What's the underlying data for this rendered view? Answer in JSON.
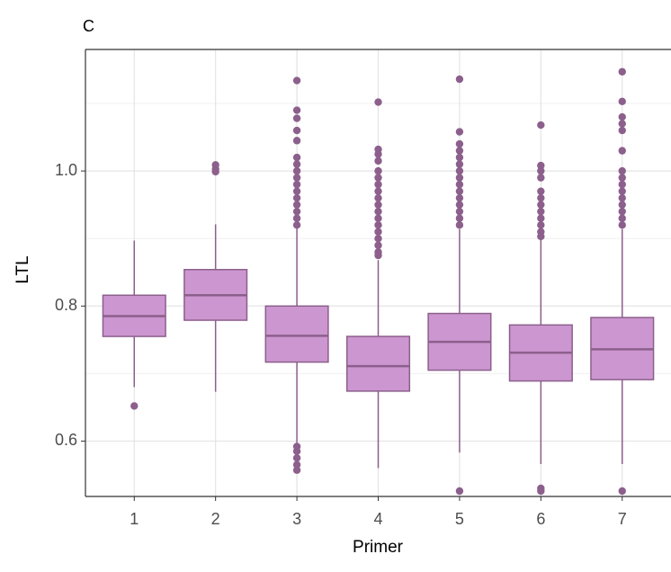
{
  "chart_data": {
    "type": "box",
    "title": "C",
    "x_label": "Primer",
    "y_label": "LTL",
    "categories": [
      "1",
      "2",
      "3",
      "4",
      "5",
      "6",
      "7"
    ],
    "whisker_low": [
      0.68,
      0.673,
      0.596,
      0.56,
      0.583,
      0.566,
      0.566
    ],
    "q1": [
      0.755,
      0.779,
      0.717,
      0.674,
      0.705,
      0.689,
      0.691
    ],
    "median": [
      0.785,
      0.816,
      0.756,
      0.711,
      0.747,
      0.731,
      0.736
    ],
    "q3": [
      0.816,
      0.854,
      0.8,
      0.755,
      0.789,
      0.772,
      0.783
    ],
    "whisker_high": [
      0.897,
      0.921,
      0.915,
      0.868,
      0.914,
      0.9,
      0.914
    ],
    "outliers": [
      [
        0.652
      ],
      [
        0.999,
        1.003,
        1.009
      ],
      [
        1.134,
        1.09,
        1.078,
        1.06,
        1.045,
        1.02,
        1.01,
        1.0,
        0.99,
        0.98,
        0.97,
        0.96,
        0.95,
        0.94,
        0.93,
        0.92,
        0.592,
        0.585,
        0.575,
        0.565,
        0.557
      ],
      [
        1.102,
        1.032,
        1.025,
        1.015,
        1.0,
        0.99,
        0.98,
        0.97,
        0.96,
        0.95,
        0.94,
        0.93,
        0.92,
        0.91,
        0.9,
        0.89,
        0.88,
        0.875
      ],
      [
        1.136,
        1.058,
        1.04,
        1.03,
        1.02,
        1.01,
        1.0,
        0.99,
        0.98,
        0.97,
        0.96,
        0.95,
        0.94,
        0.93,
        0.92,
        0.526
      ],
      [
        1.068,
        1.008,
        1.0,
        0.99,
        0.97,
        0.96,
        0.95,
        0.94,
        0.93,
        0.92,
        0.91,
        0.903,
        0.526,
        0.53
      ],
      [
        1.147,
        1.103,
        1.08,
        1.07,
        1.06,
        1.03,
        1.0,
        0.99,
        0.98,
        0.97,
        0.96,
        0.95,
        0.94,
        0.93,
        0.92,
        0.526
      ]
    ],
    "fill": "#cc96d0",
    "color": "#8c5f8c",
    "ylim": [
      0.518,
      1.18
    ],
    "yticks": [
      {
        "value": 0.6,
        "label": "0.6"
      },
      {
        "value": 0.8,
        "label": "0.8"
      },
      {
        "value": 1.0,
        "label": "1.0"
      }
    ],
    "y_minor_ticks": [
      0.7,
      0.9,
      1.1
    ],
    "grid": true
  }
}
